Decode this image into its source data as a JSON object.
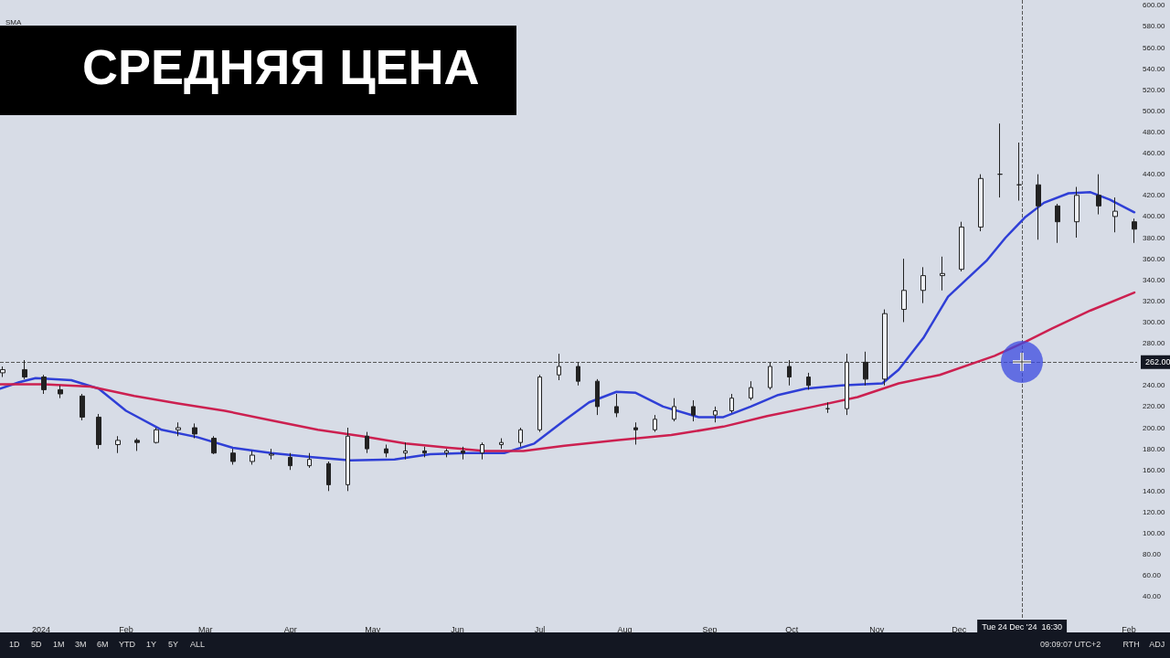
{
  "chart_data": {
    "type": "candlestick",
    "title": "СРЕДНЯЯ ЦЕНА",
    "annotations": [
      "SMA",
      "1D",
      "5D",
      "1M",
      "3M",
      "6M",
      "YTD",
      "1Y",
      "5Y",
      "ALL",
      "09:09:07 UTC+2",
      "RTH",
      "ADJ"
    ],
    "xlim": [
      "2023-12-17",
      "2025-02-04"
    ],
    "xticks": [
      {
        "value": "2024-01-01",
        "label": "2024"
      },
      {
        "value": "2024-02-01",
        "label": "Feb"
      },
      {
        "value": "2024-03-01",
        "label": "Mar"
      },
      {
        "value": "2024-04-01",
        "label": "Apr"
      },
      {
        "value": "2024-05-01",
        "label": "May"
      },
      {
        "value": "2024-06-01",
        "label": "Jun"
      },
      {
        "value": "2024-07-01",
        "label": "Jul"
      },
      {
        "value": "2024-08-01",
        "label": "Aug"
      },
      {
        "value": "2024-09-01",
        "label": "Sep"
      },
      {
        "value": "2024-10-01",
        "label": "Oct"
      },
      {
        "value": "2024-11-01",
        "label": "Nov"
      },
      {
        "value": "2024-12-01",
        "label": "Dec"
      },
      {
        "value": "2025-02-01",
        "label": "Feb"
      }
    ],
    "ylim": [
      20,
      605
    ],
    "yticks": [
      {
        "value": 40,
        "label": "40.00"
      },
      {
        "value": 60,
        "label": "60.00"
      },
      {
        "value": 80,
        "label": "80.00"
      },
      {
        "value": 100,
        "label": "100.00"
      },
      {
        "value": 120,
        "label": "120.00"
      },
      {
        "value": 140,
        "label": "140.00"
      },
      {
        "value": 160,
        "label": "160.00"
      },
      {
        "value": 180,
        "label": "180.00"
      },
      {
        "value": 200,
        "label": "200.00"
      },
      {
        "value": 220,
        "label": "220.00"
      },
      {
        "value": 240,
        "label": "240.00"
      },
      {
        "value": 280,
        "label": "280.00"
      },
      {
        "value": 300,
        "label": "300.00"
      },
      {
        "value": 320,
        "label": "320.00"
      },
      {
        "value": 340,
        "label": "340.00"
      },
      {
        "value": 360,
        "label": "360.00"
      },
      {
        "value": 380,
        "label": "380.00"
      },
      {
        "value": 400,
        "label": "400.00"
      },
      {
        "value": 420,
        "label": "420.00"
      },
      {
        "value": 440,
        "label": "440.00"
      },
      {
        "value": 460,
        "label": "460.00"
      },
      {
        "value": 480,
        "label": "480.00"
      },
      {
        "value": 500,
        "label": "500.00"
      },
      {
        "value": 520,
        "label": "520.00"
      },
      {
        "value": 540,
        "label": "540.00"
      },
      {
        "value": 560,
        "label": "560.00"
      },
      {
        "value": 580,
        "label": "580.00"
      },
      {
        "value": 600,
        "label": "600.00"
      }
    ],
    "marker": "none",
    "line_style": "solid",
    "ref_lines": [
      {
        "axis": "y",
        "value": 262,
        "label": "262.00",
        "color": "#555555",
        "line_style": "dashed"
      },
      {
        "axis": "x",
        "value": "2024-12-24",
        "label": "Tue 24 Dec '24  16:30",
        "color": "#555555",
        "line_style": "dashed"
      }
    ],
    "series": [
      {
        "color": "#222222",
        "x": [
          "2023-12-18",
          "2023-12-26",
          "2024-01-02",
          "2024-01-08",
          "2024-01-16",
          "2024-01-22",
          "2024-01-29",
          "2024-02-05",
          "2024-02-12",
          "2024-02-20",
          "2024-02-26",
          "2024-03-04",
          "2024-03-11",
          "2024-03-18",
          "2024-03-25",
          "2024-04-01",
          "2024-04-08",
          "2024-04-15",
          "2024-04-22",
          "2024-04-29",
          "2024-05-06",
          "2024-05-13",
          "2024-05-20",
          "2024-05-28",
          "2024-06-03",
          "2024-06-10",
          "2024-06-17",
          "2024-06-24",
          "2024-07-01",
          "2024-07-08",
          "2024-07-15",
          "2024-07-22",
          "2024-07-29",
          "2024-08-05",
          "2024-08-12",
          "2024-08-19",
          "2024-08-26",
          "2024-09-03",
          "2024-09-09",
          "2024-09-16",
          "2024-09-23",
          "2024-09-30",
          "2024-10-07",
          "2024-10-14",
          "2024-10-21",
          "2024-10-28",
          "2024-11-04",
          "2024-11-11",
          "2024-11-18",
          "2024-11-25",
          "2024-12-02",
          "2024-12-09",
          "2024-12-16",
          "2024-12-23",
          "2024-12-30",
          "2025-01-06",
          "2025-01-13",
          "2025-01-21",
          "2025-01-27",
          "2025-02-03"
        ],
        "ohlc": [
          [
            252,
            258,
            248,
            255
          ],
          [
            255,
            264,
            246,
            248
          ],
          [
            248,
            250,
            232,
            236
          ],
          [
            236,
            240,
            228,
            232
          ],
          [
            230,
            232,
            207,
            210
          ],
          [
            210,
            213,
            180,
            184
          ],
          [
            184,
            192,
            176,
            188
          ],
          [
            188,
            190,
            178,
            186
          ],
          [
            186,
            200,
            185,
            198
          ],
          [
            198,
            205,
            192,
            200
          ],
          [
            200,
            204,
            190,
            194
          ],
          [
            190,
            192,
            175,
            176
          ],
          [
            176,
            180,
            165,
            168
          ],
          [
            168,
            178,
            165,
            174
          ],
          [
            174,
            180,
            170,
            175
          ],
          [
            172,
            176,
            160,
            164
          ],
          [
            164,
            176,
            162,
            170
          ],
          [
            166,
            168,
            140,
            146
          ],
          [
            146,
            200,
            140,
            192
          ],
          [
            192,
            196,
            176,
            180
          ],
          [
            180,
            184,
            172,
            176
          ],
          [
            176,
            186,
            170,
            178
          ],
          [
            178,
            182,
            172,
            176
          ],
          [
            176,
            180,
            172,
            178
          ],
          [
            178,
            182,
            170,
            176
          ],
          [
            176,
            186,
            170,
            184
          ],
          [
            184,
            190,
            180,
            186
          ],
          [
            186,
            200,
            182,
            198
          ],
          [
            198,
            250,
            196,
            248
          ],
          [
            250,
            270,
            245,
            258
          ],
          [
            258,
            262,
            240,
            244
          ],
          [
            244,
            246,
            212,
            220
          ],
          [
            220,
            232,
            210,
            214
          ],
          [
            200,
            205,
            184,
            198
          ],
          [
            198,
            212,
            196,
            208
          ],
          [
            208,
            228,
            206,
            220
          ],
          [
            220,
            226,
            206,
            212
          ],
          [
            212,
            220,
            205,
            216
          ],
          [
            216,
            232,
            214,
            228
          ],
          [
            228,
            244,
            226,
            238
          ],
          [
            238,
            262,
            236,
            258
          ],
          [
            258,
            264,
            240,
            248
          ],
          [
            248,
            252,
            236,
            240
          ],
          [
            218,
            224,
            214,
            218
          ],
          [
            218,
            270,
            212,
            262
          ],
          [
            262,
            272,
            240,
            246
          ],
          [
            246,
            312,
            240,
            308
          ],
          [
            312,
            360,
            300,
            330
          ],
          [
            330,
            352,
            318,
            344
          ],
          [
            344,
            362,
            330,
            346
          ],
          [
            350,
            395,
            348,
            390
          ],
          [
            390,
            440,
            386,
            436
          ],
          [
            440,
            488,
            418,
            440
          ],
          [
            430,
            470,
            415,
            430
          ],
          [
            430,
            440,
            378,
            410
          ],
          [
            410,
            412,
            375,
            395
          ],
          [
            395,
            428,
            380,
            420
          ],
          [
            420,
            440,
            402,
            410
          ],
          [
            400,
            418,
            385,
            405
          ],
          [
            395,
            398,
            375,
            388
          ]
        ]
      },
      {
        "type": "line",
        "color": "#2f3fd6",
        "x": [
          "2023-12-17",
          "2023-12-24",
          "2023-12-30",
          "2024-01-12",
          "2024-01-22",
          "2024-02-01",
          "2024-02-14",
          "2024-02-27",
          "2024-03-11",
          "2024-03-25",
          "2024-04-09",
          "2024-04-23",
          "2024-05-09",
          "2024-05-22",
          "2024-06-04",
          "2024-06-18",
          "2024-06-29",
          "2024-07-10",
          "2024-07-19",
          "2024-07-29",
          "2024-08-05",
          "2024-08-15",
          "2024-08-28",
          "2024-09-06",
          "2024-09-16",
          "2024-09-26",
          "2024-10-06",
          "2024-10-19",
          "2024-11-03",
          "2024-11-09",
          "2024-11-18",
          "2024-11-27",
          "2024-12-11",
          "2024-12-18",
          "2024-12-25",
          "2025-01-01",
          "2025-01-10",
          "2025-01-18",
          "2025-01-25",
          "2025-02-03"
        ],
        "values": [
          237,
          243,
          247,
          245,
          237,
          216,
          198,
          191,
          181,
          176,
          172,
          169,
          170,
          175,
          176,
          176,
          185,
          207,
          224,
          234,
          233,
          220,
          210,
          210,
          220,
          231,
          237,
          240,
          242,
          255,
          285,
          324,
          358,
          380,
          399,
          413,
          422,
          423,
          416,
          404
        ]
      },
      {
        "type": "line",
        "color": "#cc2050",
        "x": [
          "2023-12-17",
          "2024-01-02",
          "2024-01-19",
          "2024-02-04",
          "2024-02-20",
          "2024-03-08",
          "2024-03-25",
          "2024-04-11",
          "2024-04-27",
          "2024-05-13",
          "2024-05-29",
          "2024-06-11",
          "2024-06-25",
          "2024-07-10",
          "2024-07-29",
          "2024-08-18",
          "2024-09-06",
          "2024-09-22",
          "2024-10-09",
          "2024-10-25",
          "2024-11-09",
          "2024-11-24",
          "2024-12-14",
          "2024-12-25",
          "2025-01-04",
          "2025-01-18",
          "2025-02-03"
        ],
        "values": [
          241,
          241,
          239,
          230,
          223,
          216,
          207,
          198,
          192,
          185,
          181,
          178,
          178,
          183,
          188,
          193,
          201,
          211,
          220,
          229,
          242,
          250,
          268,
          281,
          294,
          311,
          328
        ]
      }
    ]
  }
}
